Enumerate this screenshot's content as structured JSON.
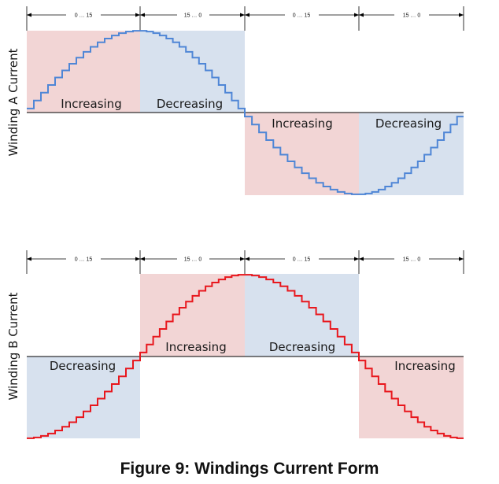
{
  "figure": {
    "caption": "Figure 9: Windings Current Form"
  },
  "colors": {
    "increasing_fill": "#f2d5d5",
    "decreasing_fill": "#d7e1ee",
    "winding_a_line": "#4f86d6",
    "winding_b_line": "#e8171d",
    "axis": "#000000"
  },
  "segment_markers": [
    "0 … 15",
    "15 … 0",
    "0 … 15",
    "15 … 0"
  ],
  "winding_a": {
    "title": "Winding A Current",
    "regions": [
      {
        "label": "Increasing",
        "kind": "increasing"
      },
      {
        "label": "Decreasing",
        "kind": "decreasing"
      },
      {
        "label": "Increasing",
        "kind": "increasing"
      },
      {
        "label": "Decreasing",
        "kind": "decreasing"
      }
    ]
  },
  "winding_b": {
    "title": "Winding B Current",
    "regions": [
      {
        "label": "Decreasing",
        "kind": "decreasing"
      },
      {
        "label": "Increasing",
        "kind": "increasing"
      },
      {
        "label": "Decreasing",
        "kind": "decreasing"
      },
      {
        "label": "Increasing",
        "kind": "increasing"
      }
    ]
  },
  "waveform": {
    "steps_per_quarter": 16
  }
}
